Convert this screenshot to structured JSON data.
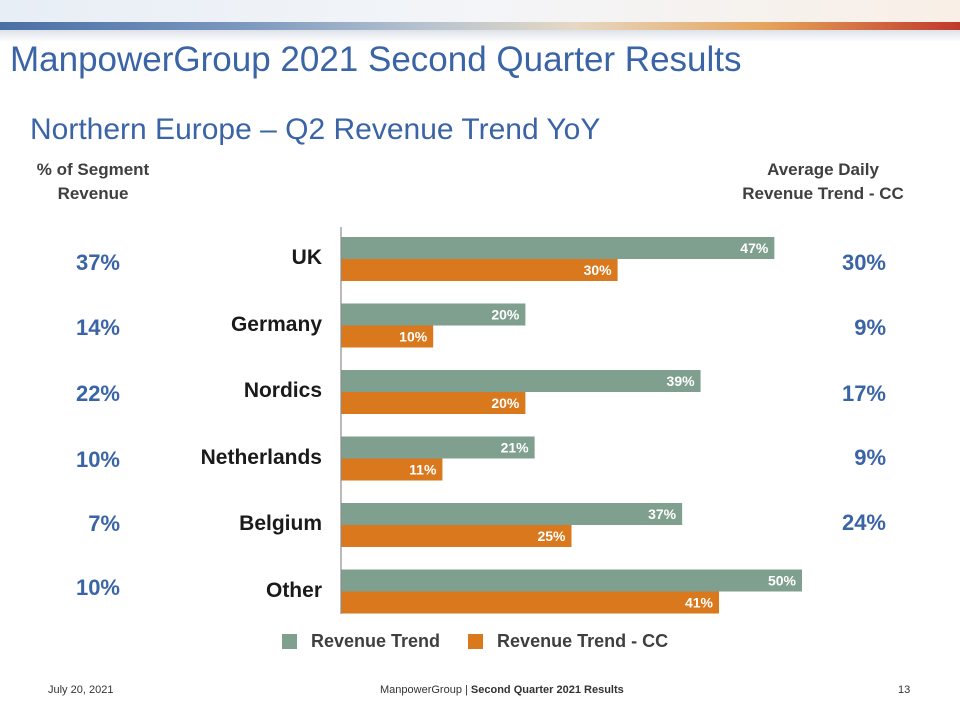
{
  "header": {
    "title": "ManpowerGroup 2021 Second Quarter Results",
    "subtitle": "Northern Europe – Q2 Revenue Trend YoY"
  },
  "left_column": {
    "heading_line1": "% of Segment",
    "heading_line2": "Revenue",
    "values": [
      "37%",
      "14%",
      "22%",
      "10%",
      "7%",
      "10%"
    ]
  },
  "right_column": {
    "heading_line1": "Average Daily",
    "heading_line2": "Revenue Trend - CC",
    "values": [
      "30%",
      "9%",
      "17%",
      "9%",
      "24%"
    ]
  },
  "chart_data": {
    "type": "bar",
    "orientation": "horizontal",
    "categories": [
      "UK",
      "Germany",
      "Nordics",
      "Netherlands",
      "Belgium",
      "Other"
    ],
    "series": [
      {
        "name": "Revenue Trend",
        "values": [
          47,
          20,
          39,
          21,
          37,
          50
        ],
        "labels": [
          "47%",
          "20%",
          "39%",
          "21%",
          "37%",
          "50%"
        ],
        "color": "#7f9f8f"
      },
      {
        "name": "Revenue Trend - CC",
        "values": [
          30,
          10,
          20,
          11,
          25,
          41
        ],
        "labels": [
          "30%",
          "10%",
          "20%",
          "11%",
          "25%",
          "41%"
        ],
        "color": "#d9781c"
      }
    ],
    "xlim": [
      0,
      50
    ],
    "legend_position": "bottom",
    "grid": false
  },
  "footer": {
    "date": "July 20, 2021",
    "company": "ManpowerGroup",
    "separator": " | ",
    "report": "Second Quarter 2021 Results",
    "page": "13"
  }
}
